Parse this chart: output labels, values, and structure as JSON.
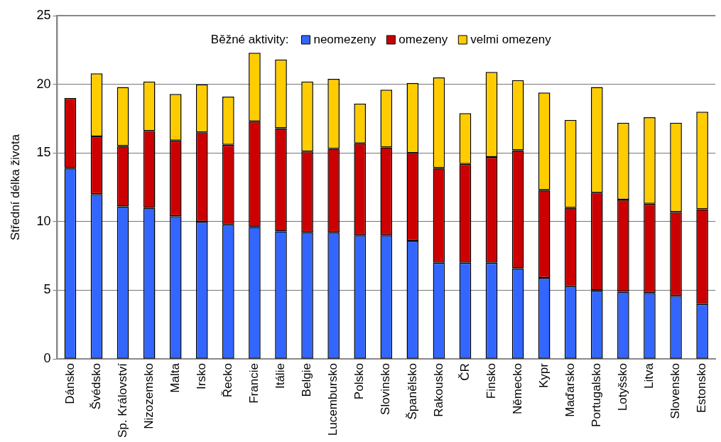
{
  "chart_data": {
    "type": "bar",
    "stacked": true,
    "ylabel": "Střední délka života",
    "legend_title": "Běžné aktivity:",
    "legend": "top",
    "categories": [
      "Dánsko",
      "Švédsko",
      "Sp. Království",
      "Nizozemsko",
      "Malta",
      "Irsko",
      "Řecko",
      "Francie",
      "Itálie",
      "Belgie",
      "Lucembursko",
      "Polsko",
      "Slovinsko",
      "Španělsko",
      "Rakousko",
      "ČR",
      "Finsko",
      "Německo",
      "Kypr",
      "Maďarsko",
      "Portugalsko",
      "Lotyšsko",
      "Litva",
      "Slovensko",
      "Estonsko"
    ],
    "series": [
      {
        "name": "neomezeny",
        "color": "#3366ff",
        "values": [
          13.9,
          12.0,
          11.1,
          11.0,
          10.4,
          10.0,
          9.8,
          9.6,
          9.3,
          9.2,
          9.2,
          9.0,
          9.0,
          8.6,
          7.0,
          7.0,
          7.0,
          6.6,
          5.9,
          5.3,
          5.0,
          4.9,
          4.8,
          4.6,
          4.0
        ]
      },
      {
        "name": "omezeny",
        "color": "#cc0000",
        "values": [
          5.1,
          4.2,
          4.4,
          5.6,
          5.5,
          6.5,
          5.8,
          7.7,
          7.5,
          5.9,
          6.1,
          6.7,
          6.4,
          6.4,
          6.9,
          7.2,
          7.7,
          8.6,
          6.4,
          5.7,
          7.1,
          6.7,
          6.5,
          6.1,
          6.9
        ]
      },
      {
        "name": "velmi omezeny",
        "color": "#ffcc00",
        "values": [
          null,
          4.6,
          4.3,
          3.6,
          3.4,
          3.5,
          3.5,
          5.0,
          5.0,
          5.1,
          5.1,
          2.9,
          4.2,
          5.1,
          6.6,
          3.7,
          6.2,
          5.1,
          7.1,
          6.4,
          7.7,
          5.6,
          6.3,
          6.5,
          7.1
        ]
      }
    ],
    "ylim": [
      0,
      25
    ],
    "yticks": [
      0,
      5,
      10,
      15,
      20,
      25
    ],
    "grid": "y"
  }
}
